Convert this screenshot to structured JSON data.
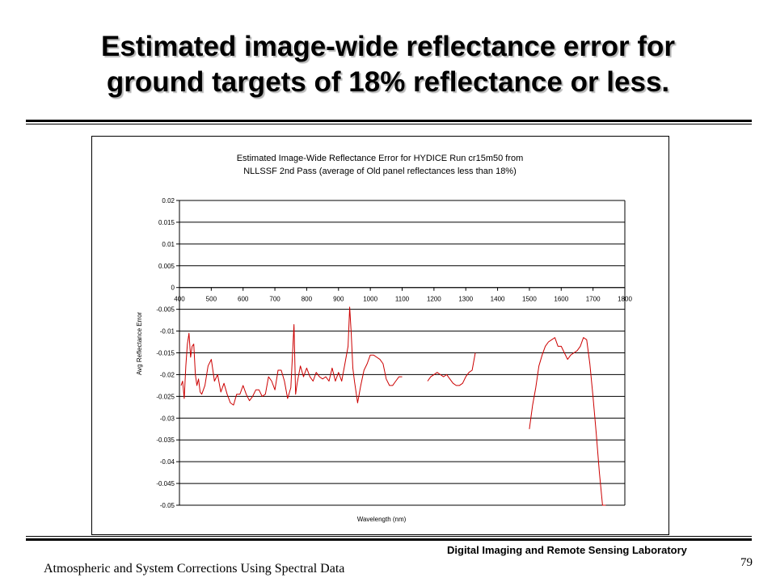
{
  "slide": {
    "title_line1": "Estimated image-wide reflectance error for",
    "title_line2": "ground targets of 18% reflectance or less.",
    "footer_lab": "Digital Imaging and Remote Sensing Laboratory",
    "footer_course": "Atmospheric and System Corrections Using Spectral Data",
    "page_number": "79"
  },
  "chart_data": {
    "type": "line",
    "title_line1": "Estimated Image-Wide Reflectance Error for HYDICE Run cr15m50 from",
    "title_line2": "NLLSSF 2nd Pass (average of Old panel reflectances less than 18%)",
    "xlabel": "Wavelength (nm)",
    "ylabel": "Avg Reflectance Error",
    "xlim": [
      400,
      1800
    ],
    "ylim": [
      -0.05,
      0.02
    ],
    "x_ticks": [
      400,
      500,
      600,
      700,
      800,
      900,
      1000,
      1100,
      1200,
      1300,
      1400,
      1500,
      1600,
      1700,
      1800
    ],
    "y_ticks": [
      0.02,
      0.015,
      0.01,
      0.005,
      0,
      -0.005,
      -0.01,
      -0.015,
      -0.02,
      -0.025,
      -0.03,
      -0.035,
      -0.04,
      -0.045,
      -0.05
    ],
    "y_tick_labels": [
      "0.02",
      "0.015",
      "0.01",
      "0.005",
      "0",
      "-0.005",
      "-0.01",
      "-0.015",
      "-0.02",
      "-0.025",
      "-0.03",
      "-0.035",
      "-0.04",
      "-0.045",
      "-0.05"
    ],
    "grid": true,
    "series_color": "#cc0000",
    "segments": [
      {
        "x": [
          405,
          410,
          415,
          420,
          425,
          430,
          435,
          440,
          445,
          450,
          455,
          460,
          465,
          470,
          480,
          490,
          500,
          510,
          520,
          525,
          530,
          540,
          550,
          560,
          570,
          580,
          590,
          600,
          610,
          620,
          630,
          640,
          650,
          660,
          670,
          680,
          690,
          700,
          710,
          720,
          730,
          740,
          750,
          755,
          760,
          765,
          770,
          780,
          790,
          800,
          810,
          820,
          830,
          840,
          850,
          860,
          870,
          880,
          890,
          900,
          910,
          920,
          930,
          935,
          940,
          945,
          950,
          960,
          970,
          980,
          990,
          1000,
          1010,
          1020,
          1030,
          1040,
          1050,
          1060,
          1070,
          1080,
          1090,
          1100
        ],
        "y": [
          -0.0225,
          -0.0215,
          -0.0255,
          -0.018,
          -0.013,
          -0.0105,
          -0.016,
          -0.0135,
          -0.013,
          -0.02,
          -0.0225,
          -0.021,
          -0.024,
          -0.0245,
          -0.0225,
          -0.018,
          -0.0165,
          -0.0215,
          -0.02,
          -0.022,
          -0.024,
          -0.022,
          -0.0245,
          -0.0265,
          -0.027,
          -0.0245,
          -0.0245,
          -0.0225,
          -0.0245,
          -0.026,
          -0.025,
          -0.0235,
          -0.0235,
          -0.025,
          -0.0245,
          -0.0205,
          -0.0215,
          -0.0235,
          -0.019,
          -0.019,
          -0.0215,
          -0.0255,
          -0.023,
          -0.016,
          -0.0085,
          -0.0245,
          -0.022,
          -0.018,
          -0.0205,
          -0.0185,
          -0.0205,
          -0.0215,
          -0.0195,
          -0.0205,
          -0.021,
          -0.0205,
          -0.0215,
          -0.0185,
          -0.0215,
          -0.0195,
          -0.0215,
          -0.0175,
          -0.0135,
          -0.0045,
          -0.0105,
          -0.0185,
          -0.0215,
          -0.0265,
          -0.0225,
          -0.019,
          -0.0175,
          -0.0155,
          -0.0155,
          -0.016,
          -0.0165,
          -0.0175,
          -0.021,
          -0.0225,
          -0.0225,
          -0.0215,
          -0.0205,
          -0.0205
        ]
      },
      {
        "x": [
          1180,
          1190,
          1200,
          1210,
          1220,
          1230,
          1240,
          1250,
          1260,
          1270,
          1280,
          1290,
          1300,
          1310,
          1320,
          1330
        ],
        "y": [
          -0.0215,
          -0.0205,
          -0.02,
          -0.0195,
          -0.02,
          -0.0205,
          -0.02,
          -0.021,
          -0.022,
          -0.0225,
          -0.0225,
          -0.022,
          -0.0205,
          -0.0195,
          -0.019,
          -0.015
        ]
      },
      {
        "x": [
          1500,
          1510,
          1520,
          1530,
          1540,
          1550,
          1560,
          1570,
          1580,
          1590,
          1600,
          1610,
          1620,
          1630,
          1640,
          1650,
          1660,
          1670,
          1680,
          1690,
          1700,
          1710,
          1720,
          1730,
          1740
        ],
        "y": [
          -0.0325,
          -0.027,
          -0.023,
          -0.018,
          -0.0155,
          -0.0135,
          -0.0125,
          -0.012,
          -0.0115,
          -0.0135,
          -0.0135,
          -0.015,
          -0.0165,
          -0.0155,
          -0.015,
          -0.0145,
          -0.0135,
          -0.0115,
          -0.012,
          -0.0175,
          -0.025,
          -0.0335,
          -0.0425,
          -0.05,
          -0.05
        ]
      }
    ]
  }
}
